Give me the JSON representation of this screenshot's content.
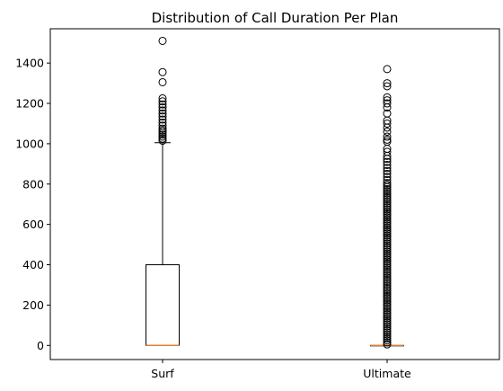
{
  "chart_data": {
    "type": "box",
    "title": "Distribution of Call Duration Per Plan",
    "xlabel": "",
    "ylabel": "",
    "categories": [
      "Surf",
      "Ultimate"
    ],
    "ylim": [
      -70,
      1570
    ],
    "yticks": [
      0,
      200,
      400,
      600,
      800,
      1000,
      1200,
      1400
    ],
    "grid": false,
    "colors": {
      "box": "#000000",
      "median": "#e07f2e",
      "background": "#ffffff"
    },
    "boxes": [
      {
        "label": "Surf",
        "whisker_low": 0,
        "q1": 0,
        "median": 0,
        "q3": 400,
        "whisker_high": 1005,
        "outliers": [
          1015,
          1025,
          1035,
          1045,
          1055,
          1065,
          1075,
          1090,
          1105,
          1120,
          1135,
          1150,
          1165,
          1180,
          1195,
          1210,
          1225,
          1305,
          1355,
          1510
        ]
      },
      {
        "label": "Ultimate",
        "whisker_low": 0,
        "q1": 0,
        "median": 0,
        "q3": 0,
        "whisker_high": 0,
        "outliers": [
          5,
          15,
          25,
          35,
          45,
          55,
          65,
          75,
          85,
          95,
          105,
          115,
          125,
          135,
          145,
          155,
          165,
          175,
          185,
          195,
          205,
          215,
          225,
          235,
          245,
          255,
          265,
          275,
          285,
          295,
          305,
          315,
          325,
          335,
          345,
          355,
          365,
          375,
          385,
          395,
          405,
          415,
          425,
          435,
          445,
          455,
          465,
          475,
          485,
          495,
          505,
          515,
          525,
          535,
          545,
          555,
          565,
          575,
          585,
          595,
          605,
          615,
          625,
          635,
          645,
          655,
          665,
          675,
          685,
          695,
          705,
          715,
          725,
          735,
          745,
          755,
          765,
          775,
          785,
          795,
          805,
          820,
          835,
          850,
          865,
          880,
          895,
          910,
          925,
          940,
          960,
          975,
          1010,
          1020,
          1035,
          1060,
          1080,
          1100,
          1115,
          1150,
          1180,
          1200,
          1215,
          1230,
          1285,
          1300,
          1370
        ]
      }
    ]
  }
}
